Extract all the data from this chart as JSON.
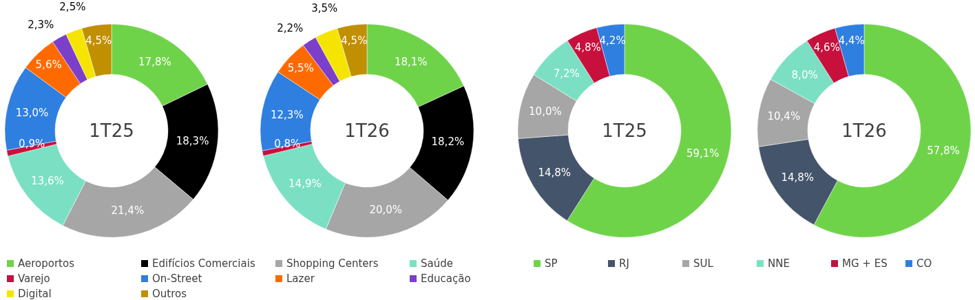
{
  "chart_data": [
    {
      "type": "donut",
      "categories": [
        "Aeroportos",
        "Edifícios Comerciais",
        "Shopping Centers",
        "Saúde",
        "Varejo",
        "On-Street",
        "Lazer",
        "Educação",
        "Digital",
        "Outros"
      ],
      "colors": [
        "#6fd34a",
        "#000000",
        "#a6a6a6",
        "#7be0c3",
        "#c8103d",
        "#2e7fe0",
        "#ff6a00",
        "#7b3fc9",
        "#f5e400",
        "#c09000"
      ],
      "legend": "bottom",
      "series": [
        {
          "name": "1T25",
          "values": [
            17.8,
            18.3,
            21.4,
            13.6,
            0.9,
            13.0,
            5.6,
            2.3,
            2.5,
            4.5
          ],
          "value_labels": [
            "17,8%",
            "18,3%",
            "21,4%",
            "13,6%",
            "0,9%",
            "13,0%",
            "5,6%",
            "2,3%",
            "2,5%",
            "4,5%"
          ]
        },
        {
          "name": "1T26",
          "values": [
            18.1,
            18.2,
            20.0,
            14.9,
            0.8,
            12.3,
            5.5,
            2.2,
            3.5,
            4.5
          ],
          "value_labels": [
            "18,1%",
            "18,2%",
            "20,0%",
            "14,9%",
            "0,8%",
            "12,3%",
            "5,5%",
            "2,2%",
            "3,5%",
            "4,5%"
          ]
        }
      ]
    },
    {
      "type": "donut",
      "categories": [
        "SP",
        "RJ",
        "SUL",
        "NNE",
        "MG + ES",
        "CO"
      ],
      "colors": [
        "#6fd34a",
        "#44546a",
        "#a6a6a6",
        "#7be0c3",
        "#c8103d",
        "#2e7fe0"
      ],
      "legend": "bottom",
      "series": [
        {
          "name": "1T25",
          "values": [
            59.1,
            14.8,
            10.0,
            7.2,
            4.8,
            4.2
          ],
          "value_labels": [
            "59,1%",
            "14,8%",
            "10,0%",
            "7,2%",
            "4,8%",
            "4,2%"
          ]
        },
        {
          "name": "1T26",
          "values": [
            57.8,
            14.8,
            10.4,
            8.0,
            4.6,
            4.4
          ],
          "value_labels": [
            "57,8%",
            "14,8%",
            "10,4%",
            "8,0%",
            "4,6%",
            "4,4%"
          ]
        }
      ]
    }
  ]
}
